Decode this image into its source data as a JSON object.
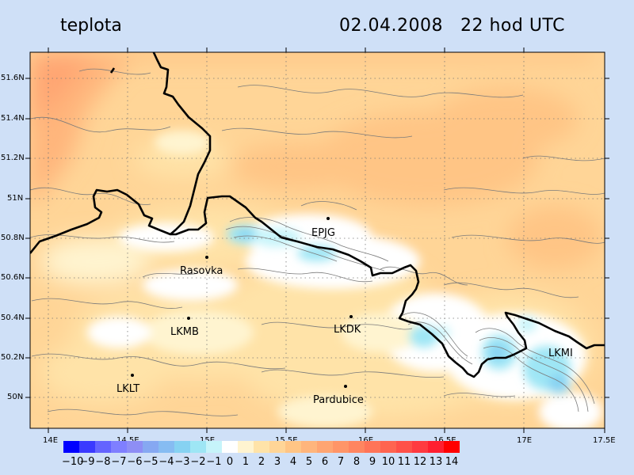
{
  "header": {
    "variable": "teplota",
    "date": "02.04.2008",
    "time": "22 hod UTC"
  },
  "map": {
    "lat_labels": [
      "51.6N",
      "51.4N",
      "51.2N",
      "51N",
      "50.8N",
      "50.6N",
      "50.4N",
      "50.2N",
      "50N"
    ],
    "lon_labels": [
      "14E",
      "14.5E",
      "15E",
      "15.5E",
      "16E",
      "16.5E",
      "17E",
      "17.5E"
    ],
    "stations": [
      {
        "label": "EPJG"
      },
      {
        "label": "Rasovka"
      },
      {
        "label": "LKMB"
      },
      {
        "label": "LKDK"
      },
      {
        "label": "LKMI"
      },
      {
        "label": "LKLT"
      },
      {
        "label": "Pardubice"
      }
    ]
  },
  "colorbar": {
    "labels": [
      "−10",
      "−9",
      "−8",
      "−7",
      "−6",
      "−5",
      "−4",
      "−3",
      "−2",
      "−1",
      "0",
      "1",
      "2",
      "3",
      "4",
      "5",
      "6",
      "7",
      "8",
      "9",
      "10",
      "11",
      "12",
      "13",
      "14"
    ],
    "colors": [
      "#0000ff",
      "#3a3aff",
      "#6464ff",
      "#7f7fff",
      "#8e8ef5",
      "#86a8f2",
      "#86bcf2",
      "#86d2f2",
      "#9ee6f5",
      "#c6f4fa",
      "#ffffff",
      "#fff4d0",
      "#ffe3a8",
      "#ffd597",
      "#ffc585",
      "#ffb57c",
      "#ffa572",
      "#ff9568",
      "#ff8560",
      "#ff7458",
      "#ff6450",
      "#ff5048",
      "#ff3a40",
      "#ff1f30",
      "#ff0000"
    ]
  }
}
